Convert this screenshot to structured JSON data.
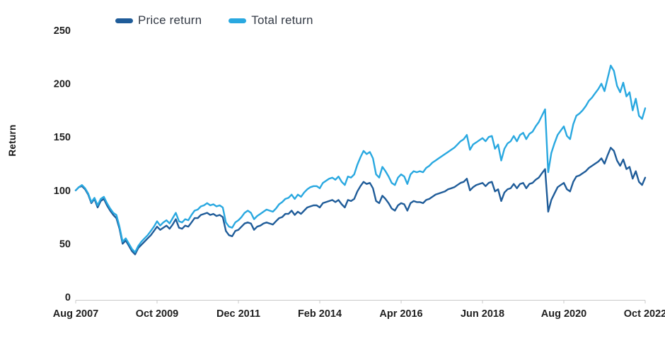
{
  "chart_data": {
    "type": "line",
    "title": "",
    "ylabel": "Return",
    "xlabel": "",
    "grid": false,
    "legend_position": "top",
    "ylim": [
      0,
      250
    ],
    "y_ticks": [
      0,
      50,
      100,
      150,
      200,
      250
    ],
    "x_tick_labels": [
      "Aug 2007",
      "Oct 2009",
      "Dec 2011",
      "Feb 2014",
      "Apr 2016",
      "Jun 2018",
      "Aug 2020",
      "Oct 2022"
    ],
    "x_unit": "month (Aug 2007 = 100 index start)",
    "axis_color": "#c9c9c9",
    "series": [
      {
        "name": "Price return",
        "color": "#1F5C99",
        "values": [
          100,
          103,
          104,
          101,
          96,
          88,
          92,
          84,
          90,
          92,
          86,
          81,
          77,
          74,
          64,
          50,
          53,
          48,
          43,
          40,
          46,
          49,
          52,
          55,
          58,
          62,
          66,
          63,
          65,
          67,
          64,
          68,
          73,
          65,
          64,
          67,
          66,
          70,
          74,
          74,
          77,
          78,
          79,
          77,
          78,
          76,
          77,
          75,
          62,
          58,
          57,
          62,
          63,
          66,
          69,
          70,
          69,
          63,
          66,
          67,
          69,
          70,
          69,
          68,
          71,
          74,
          75,
          78,
          78,
          81,
          77,
          80,
          78,
          81,
          84,
          85,
          86,
          86,
          84,
          88,
          89,
          90,
          91,
          89,
          91,
          87,
          84,
          91,
          90,
          92,
          99,
          104,
          108,
          106,
          107,
          102,
          90,
          88,
          95,
          92,
          88,
          83,
          81,
          86,
          88,
          87,
          81,
          88,
          90,
          89,
          89,
          88,
          91,
          92,
          94,
          96,
          97,
          98,
          99,
          101,
          102,
          103,
          105,
          107,
          108,
          111,
          100,
          103,
          105,
          106,
          107,
          104,
          107,
          108,
          99,
          101,
          90,
          98,
          101,
          102,
          106,
          102,
          106,
          107,
          102,
          106,
          107,
          110,
          112,
          116,
          120,
          80,
          91,
          97,
          103,
          105,
          107,
          101,
          99,
          108,
          113,
          114,
          116,
          118,
          121,
          123,
          125,
          127,
          130,
          125,
          133,
          140,
          137,
          128,
          123,
          129,
          120,
          122,
          111,
          118,
          108,
          105,
          112
        ]
      },
      {
        "name": "Total return",
        "color": "#29A8E0",
        "values": [
          100,
          103,
          105,
          102,
          97,
          89,
          93,
          86,
          92,
          94,
          88,
          83,
          79,
          77,
          66,
          52,
          55,
          50,
          45,
          42,
          48,
          52,
          55,
          58,
          62,
          66,
          71,
          67,
          70,
          72,
          69,
          74,
          79,
          71,
          70,
          73,
          72,
          77,
          81,
          82,
          85,
          86,
          88,
          86,
          87,
          85,
          86,
          84,
          70,
          66,
          65,
          70,
          72,
          75,
          79,
          81,
          79,
          73,
          76,
          78,
          80,
          82,
          81,
          80,
          83,
          87,
          89,
          92,
          93,
          96,
          92,
          96,
          94,
          98,
          101,
          103,
          104,
          104,
          102,
          107,
          109,
          111,
          112,
          110,
          113,
          108,
          105,
          113,
          112,
          115,
          124,
          131,
          137,
          134,
          136,
          130,
          115,
          112,
          122,
          118,
          113,
          107,
          105,
          112,
          115,
          113,
          106,
          115,
          118,
          117,
          118,
          117,
          121,
          123,
          126,
          128,
          130,
          132,
          134,
          136,
          138,
          140,
          143,
          146,
          148,
          152,
          138,
          143,
          145,
          147,
          149,
          146,
          150,
          151,
          139,
          143,
          128,
          139,
          144,
          146,
          151,
          146,
          152,
          154,
          148,
          153,
          155,
          160,
          164,
          170,
          176,
          117,
          135,
          144,
          152,
          156,
          160,
          151,
          148,
          162,
          170,
          172,
          175,
          179,
          184,
          187,
          191,
          195,
          200,
          193,
          205,
          217,
          212,
          198,
          192,
          201,
          188,
          192,
          175,
          186,
          170,
          167,
          177
        ]
      }
    ]
  }
}
